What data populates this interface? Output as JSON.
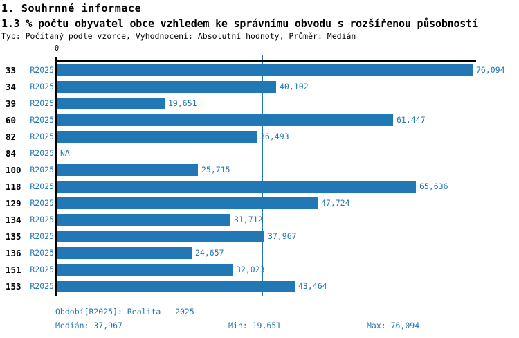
{
  "header": {
    "title": "1. Souhrnné informace",
    "subtitle": "1.3 % počtu obyvatel obce vzhledem ke správnímu obvodu s rozšířenou působností",
    "meta": "Typ: Počítaný podle vzorce, Vyhodnocení: Absolutní hodnoty, Průměr: Medián"
  },
  "chart_data": {
    "type": "bar",
    "orientation": "horizontal",
    "title": "1.3 % počtu obyvatel obce vzhledem ke správnímu obvodu s rozšířenou působností",
    "series_label": "R2025",
    "categories": [
      "33",
      "34",
      "39",
      "60",
      "82",
      "84",
      "100",
      "118",
      "129",
      "134",
      "135",
      "136",
      "151",
      "153"
    ],
    "values": [
      76094,
      40102,
      19651,
      61447,
      36493,
      null,
      25715,
      65636,
      47724,
      31712,
      37967,
      24657,
      32023,
      43464
    ],
    "value_labels": [
      "76,094",
      "40,102",
      "19,651",
      "61,447",
      "36,493",
      "NA",
      "25,715",
      "65,636",
      "47,724",
      "31,712",
      "37,967",
      "24,657",
      "32,023",
      "43,464"
    ],
    "xlabel": "",
    "ylabel": "",
    "xlim": [
      0,
      76900
    ],
    "axis_tick_label": "0",
    "grid": false,
    "legend_position": "none",
    "reference_line": {
      "value": 37967,
      "meaning": "Medián"
    },
    "bar_color": "#2278b5",
    "label_color": "#2278b5",
    "axis_color": "#000000"
  },
  "footer": {
    "period": "Období[R2025]: Realita – 2025",
    "median": "Medián: 37,967",
    "min": "Min: 19,651",
    "max": "Max: 76,094"
  }
}
